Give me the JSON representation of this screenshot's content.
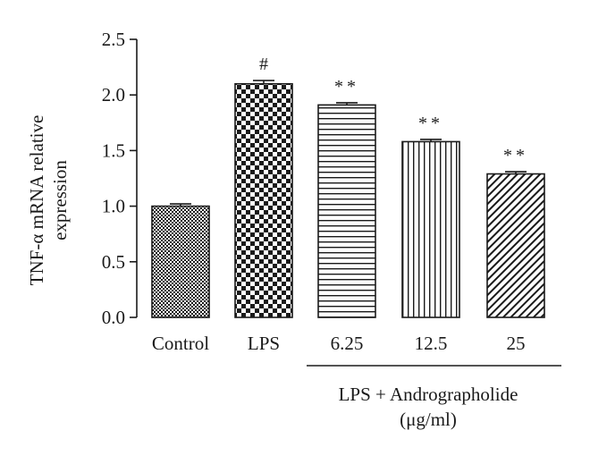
{
  "chart_data": {
    "type": "bar",
    "ylabel_line1": "TNF-α mRNA relative",
    "ylabel_line2": "expression",
    "ylim": [
      0,
      2.5
    ],
    "yticks": [
      "0.0",
      "0.5",
      "1.0",
      "1.5",
      "2.0",
      "2.5"
    ],
    "categories": [
      "Control",
      "LPS",
      "6.25",
      "12.5",
      "25"
    ],
    "values": [
      1.0,
      2.1,
      1.91,
      1.58,
      1.29
    ],
    "errors": [
      0.02,
      0.03,
      0.02,
      0.02,
      0.02
    ],
    "annotations": [
      "",
      "#",
      "**",
      "**",
      "**"
    ],
    "patterns": [
      "fine-check",
      "checker",
      "horizontal-lines",
      "vertical-lines",
      "diagonal-lines"
    ],
    "group_label_line1": "LPS + Andrographolide",
    "group_label_line2": "(μg/ml)",
    "bar_color": "#1a1a1a",
    "background": "#ffffff",
    "grid": false
  }
}
